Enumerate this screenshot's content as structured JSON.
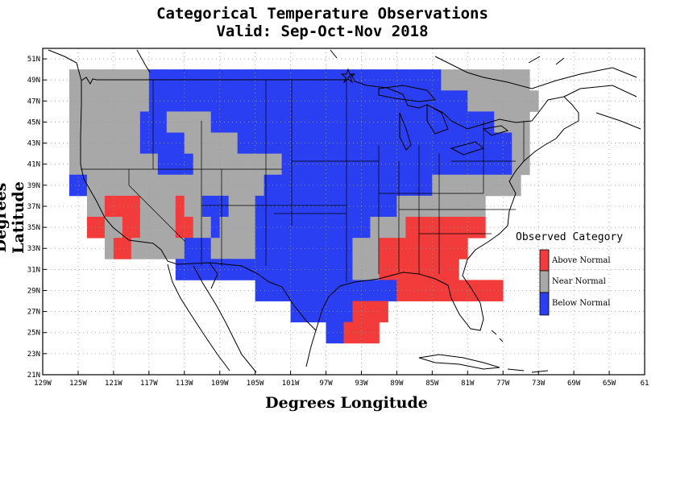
{
  "title": "Categorical Temperature Observations",
  "subtitle": "Valid: Sep-Oct-Nov 2018",
  "xlabel": "Degrees Longitude",
  "ylabel": "Degrees Latitude",
  "colors": {
    "above": "#f23b3b",
    "near": "#a8a8a8",
    "below": "#2b3ff2"
  },
  "legend": {
    "title": "Observed Category",
    "items": [
      {
        "key": "above",
        "label": "Above Normal"
      },
      {
        "key": "near",
        "label": "Near Normal"
      },
      {
        "key": "below",
        "label": "Below Normal"
      }
    ]
  },
  "chart_data": {
    "type": "heatmap",
    "title": "Categorical Temperature Observations",
    "subtitle": "Valid: Sep-Oct-Nov 2018",
    "xlabel": "Degrees Longitude",
    "ylabel": "Degrees Latitude",
    "xlim": [
      -129,
      -61
    ],
    "ylim": [
      21,
      52
    ],
    "x_ticks": [
      "129W",
      "125W",
      "121W",
      "117W",
      "113W",
      "109W",
      "105W",
      "101W",
      "97W",
      "93W",
      "89W",
      "85W",
      "81W",
      "77W",
      "73W",
      "69W",
      "65W",
      "61"
    ],
    "y_ticks": [
      "21N",
      "23N",
      "25N",
      "27N",
      "29N",
      "31N",
      "33N",
      "35N",
      "37N",
      "39N",
      "41N",
      "43N",
      "45N",
      "47N",
      "49N",
      "51N"
    ],
    "cell_size_deg": 2,
    "grid": true,
    "legend_position": "right",
    "categories": [
      "above",
      "near",
      "below"
    ],
    "rows": [
      {
        "lat": 49,
        "lon_start": -126,
        "cells": "NNNNNNNNNBBBBBBBBBBBBBBBBBBBBBBBBBBBBBBBBBNNNNNNNNNN"
      },
      {
        "lat": 47,
        "lon_start": -126,
        "cells": "NNNNNNNNNBBBBBBBBBBBBBBBBBBBBBBBBBBBBBBBBBBBBNNNNNNNN"
      },
      {
        "lat": 45,
        "lon_start": -126,
        "cells": "NNNNNNNNBBBNNNNNBBBBBBBBBBBBBBBBBBBBBBBBBBBBBBBBNNNN"
      },
      {
        "lat": 43,
        "lon_start": -126,
        "cells": "NNNNNNNNBBBBBNNNNNNBBBBBBBBBBBBBBBBBBBBBBBBBBBBBBBNN"
      },
      {
        "lat": 41,
        "lon_start": -126,
        "cells": "NNNNNNNNNNBBBBNNNNNNNNNNBBBBBBBBBBBBBBBBBBBBBBBBBBNN"
      },
      {
        "lat": 39,
        "lon_start": -126,
        "cells": "BBNNNNNNNNNNNNNNNNNNNNBBBBBBBBBBBBBBBBBBBNNNNNNNNNN"
      },
      {
        "lat": 37,
        "lon_start": -124,
        "cells": "NNAAAANNNNANNBBBNNNBBBBBBBBBBBBBBBBNNNNNNNNNN"
      },
      {
        "lat": 35,
        "lon_start": -124,
        "cells": "AANNAANNNNAANNBNNNNBBBBBBBBBBBBBNNNNAAAAAAAAA"
      },
      {
        "lat": 33,
        "lon_start": -122,
        "cells": "NAANNNNNNBBBNNNNNBBBBBBBBBBBNNNAAAAAAAAAA"
      },
      {
        "lat": 31,
        "lon_start": -114,
        "cells": "BBBBBBBBBBBBBBBBBBBBNNNAAAAAAAAA"
      },
      {
        "lat": 29,
        "lon_start": -105,
        "cells": "BBBBBBBBBBBBBBBBAAAAAAAAAAAA"
      },
      {
        "lat": 27,
        "lon_start": -101,
        "cells": "BBBBBBBAAAA"
      },
      {
        "lat": 25,
        "lon_start": -97,
        "cells": "BBAAAA"
      }
    ]
  }
}
